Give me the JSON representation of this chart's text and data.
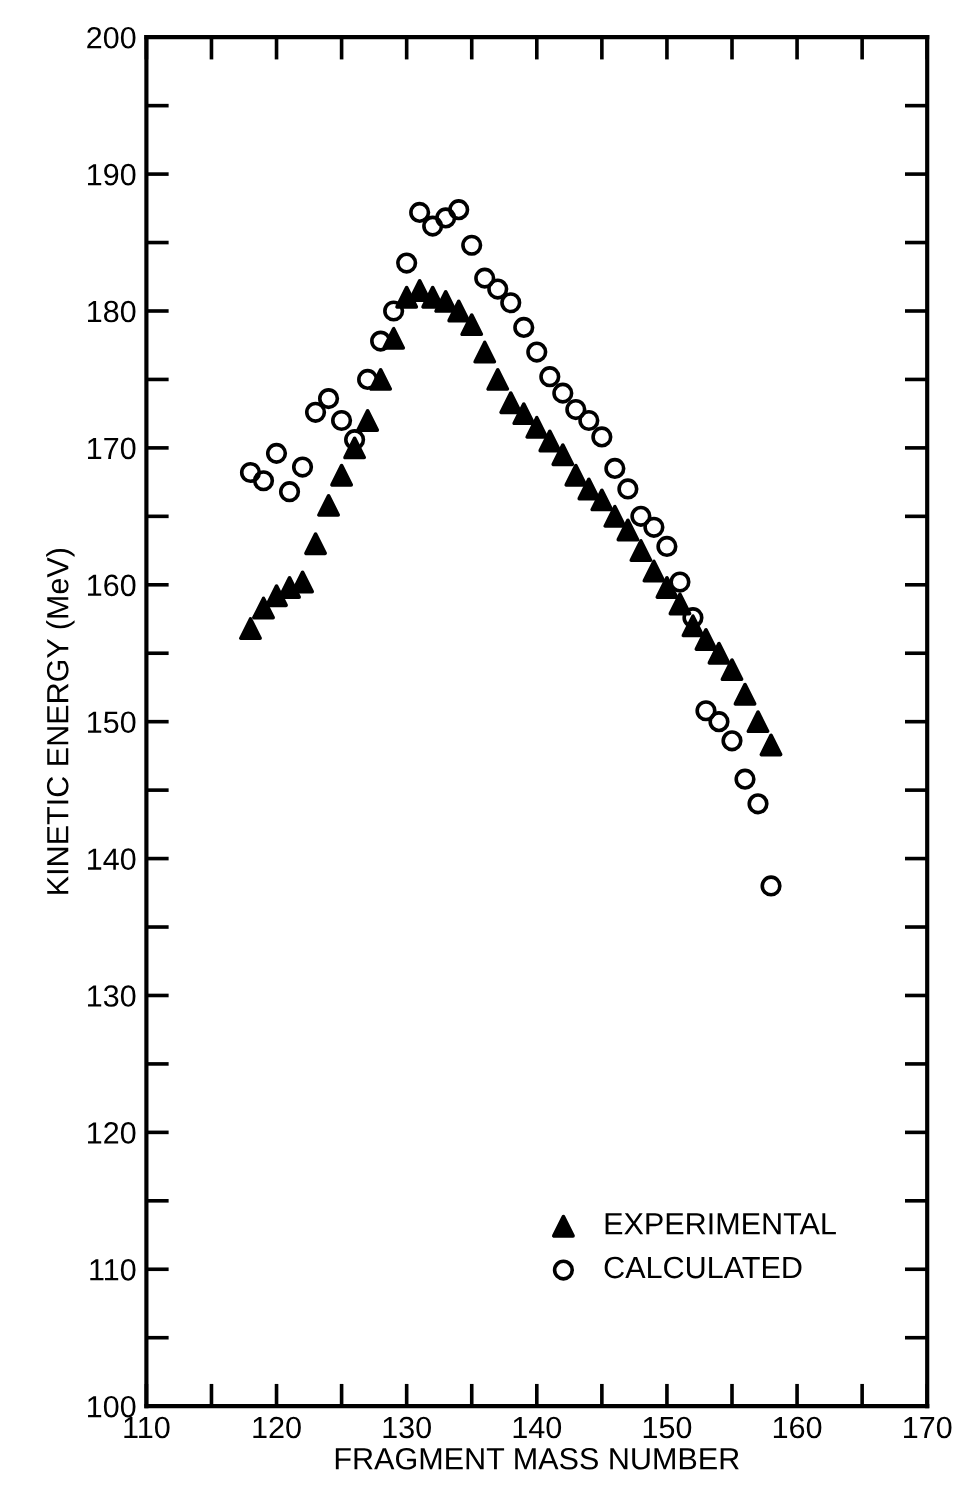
{
  "chart_data": {
    "type": "scatter",
    "xlabel": "FRAGMENT MASS NUMBER",
    "ylabel": "KINETIC ENERGY (MeV)",
    "xlim": [
      110,
      170
    ],
    "ylim": [
      100,
      200
    ],
    "xticks": [
      110,
      {
        "value": 115,
        "label": null
      },
      120,
      {
        "value": 125,
        "label": null
      },
      130,
      {
        "value": 135,
        "label": null
      },
      140,
      {
        "value": 145,
        "label": null
      },
      150,
      {
        "value": 155,
        "label": null
      },
      160,
      {
        "value": 165,
        "label": null
      },
      170
    ],
    "yticks": [
      100,
      {
        "value": 105,
        "label": null
      },
      110,
      {
        "value": 115,
        "label": null
      },
      120,
      {
        "value": 125,
        "label": null
      },
      130,
      {
        "value": 135,
        "label": null
      },
      140,
      {
        "value": 145,
        "label": null
      },
      150,
      {
        "value": 155,
        "label": null
      },
      160,
      {
        "value": 165,
        "label": null
      },
      170,
      {
        "value": 175,
        "label": null
      },
      180,
      {
        "value": 185,
        "label": null
      },
      190,
      {
        "value": 195,
        "label": null
      },
      200
    ],
    "grid": false,
    "legend": "bottom right",
    "x": [
      118,
      119,
      120,
      121,
      122,
      123,
      124,
      125,
      126,
      127,
      128,
      129,
      130,
      131,
      132,
      133,
      134,
      135,
      136,
      137,
      138,
      139,
      140,
      141,
      142,
      143,
      144,
      145,
      146,
      147,
      148,
      149,
      150,
      151,
      152,
      153,
      154,
      155,
      156,
      157,
      158
    ],
    "series": [
      {
        "name": "EXPERIMENTAL",
        "color": "#000000",
        "marker": "triangle",
        "values": [
          156.8,
          158.3,
          159.2,
          159.8,
          160.2,
          163,
          165.8,
          168,
          170,
          172,
          175,
          178,
          181,
          181.5,
          181,
          180.7,
          180,
          179,
          177,
          175,
          173.3,
          172.5,
          171.5,
          170.5,
          169.5,
          168,
          167,
          166.2,
          165,
          164,
          162.5,
          161,
          159.8,
          158.6,
          157,
          156,
          155,
          153.8,
          152,
          150,
          148.3
        ]
      },
      {
        "name": "CALCULATED",
        "color": "#000000",
        "marker": "circle",
        "values": [
          168.2,
          167.6,
          169.6,
          166.8,
          168.6,
          172.6,
          173.6,
          172,
          170.6,
          175,
          177.8,
          180,
          183.5,
          187.2,
          186.2,
          186.8,
          187.4,
          184.8,
          182.4,
          181.6,
          180.6,
          178.8,
          177,
          175.2,
          174,
          172.8,
          172,
          170.8,
          168.5,
          167,
          165,
          164.2,
          162.8,
          160.2,
          157.6,
          150.8,
          150,
          148.6,
          145.8,
          144,
          138
        ]
      }
    ]
  }
}
